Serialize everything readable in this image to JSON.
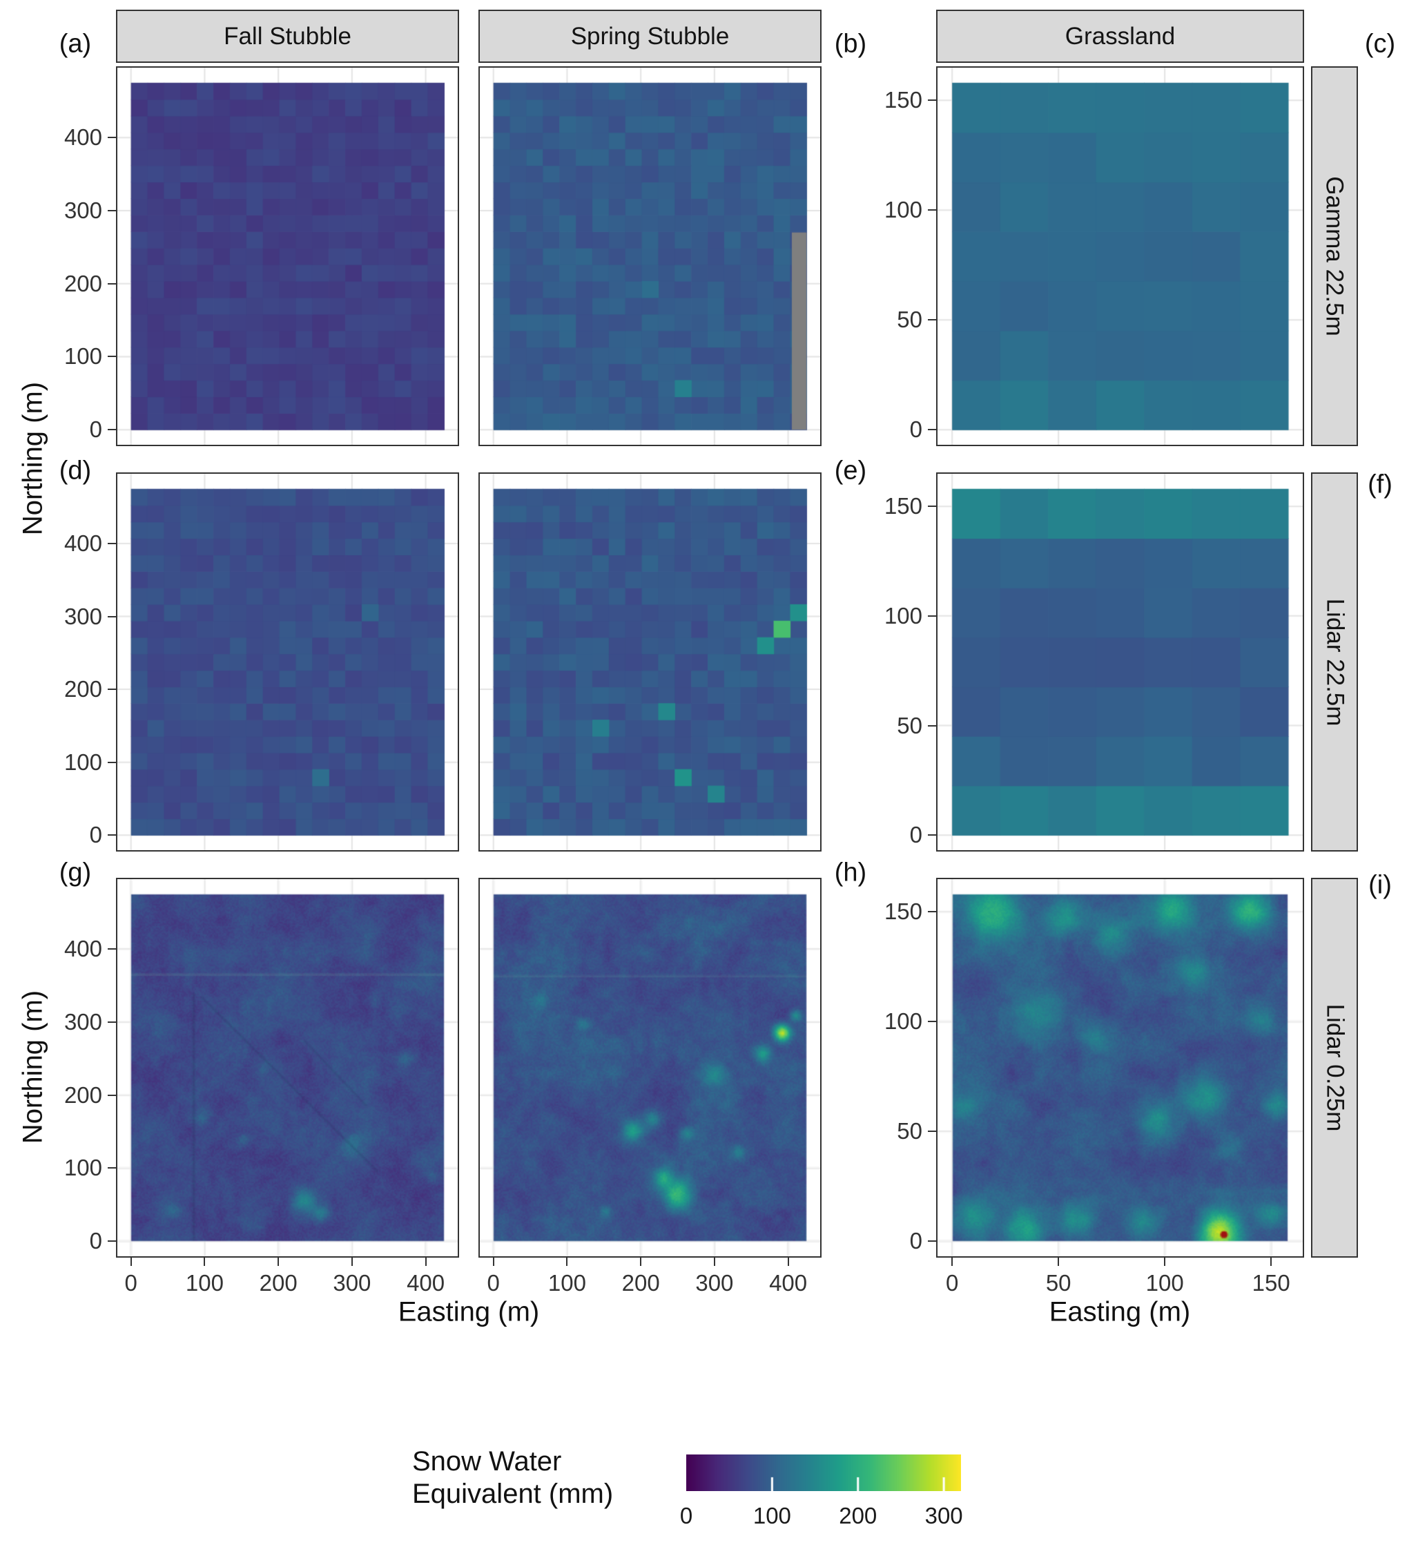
{
  "chart_data": {
    "type": "heatmap",
    "title": "",
    "xlabel": "Easting (m)",
    "ylabel": "Northing (m)",
    "facet_columns": [
      "Fall Stubble",
      "Spring Stubble",
      "Grassland"
    ],
    "facet_rows": [
      "Gamma 22.5m",
      "Lidar 22.5m",
      "Lidar 0.25m"
    ],
    "axes": {
      "stubble": {
        "x_ticks": [
          0,
          100,
          200,
          300,
          400
        ],
        "y_ticks": [
          0,
          100,
          200,
          300,
          400
        ],
        "x_range": [
          0,
          425
        ],
        "y_range": [
          0,
          475
        ]
      },
      "grassland": {
        "x_ticks": [
          0,
          50,
          100,
          150
        ],
        "y_ticks": [
          0,
          50,
          100,
          150
        ],
        "x_range": [
          0,
          158
        ],
        "y_range": [
          0,
          158
        ]
      }
    },
    "legend": {
      "title_lines": [
        "Snow Water",
        "Equivalent (mm)"
      ],
      "ticks": [
        0,
        100,
        200,
        300
      ],
      "vmin": 0,
      "vmax": 320
    },
    "colors": {
      "viridis": [
        "#440154",
        "#482878",
        "#3e4989",
        "#31688e",
        "#26828e",
        "#1f9e89",
        "#35b779",
        "#6ece58",
        "#b5de2b",
        "#fde725"
      ],
      "na": "#7f7f7f",
      "strip_fill": "#d9d9d9",
      "panel_border": "#333333",
      "text": "#111111",
      "axis_text": "#333333"
    },
    "panels": [
      {
        "id": "a",
        "label": "(a)",
        "facet_column": "Fall Stubble",
        "facet_row": "Gamma 22.5m",
        "axis": "stubble",
        "render": {
          "kind": "coarse",
          "cell_m": 22.5,
          "mean": 62,
          "spread": 11,
          "seed": 101,
          "row_means": null,
          "overrides": [],
          "na_rect": null
        }
      },
      {
        "id": "b",
        "label": "(b)",
        "facet_column": "Spring Stubble",
        "facet_row": "Gamma 22.5m",
        "axis": "stubble",
        "render": {
          "kind": "coarse",
          "cell_m": 22.5,
          "mean": 92,
          "spread": 13,
          "seed": 102,
          "row_means": null,
          "overrides": [
            [
              248,
              56,
              140
            ],
            [
              214,
              192,
              115
            ]
          ],
          "na_rect": [
            405,
            425,
            0,
            270
          ]
        }
      },
      {
        "id": "c",
        "label": "(c)",
        "facet_column": "Grassland",
        "facet_row": "Gamma 22.5m",
        "axis": "grassland",
        "render": {
          "kind": "coarse",
          "cell_m": 22.5,
          "mean": 114,
          "spread": 7,
          "seed": 103,
          "row_means": [
            124,
            113,
            109,
            109,
            112,
            116,
            127
          ],
          "overrides": [],
          "na_rect": null
        }
      },
      {
        "id": "d",
        "label": "(d)",
        "facet_column": "Fall Stubble",
        "facet_row": "Lidar 22.5m",
        "axis": "stubble",
        "render": {
          "kind": "coarse",
          "cell_m": 22.5,
          "mean": 78,
          "spread": 12,
          "seed": 104,
          "row_means": null,
          "overrides": [
            [
              260,
              80,
              115
            ],
            [
              320,
              300,
              104
            ]
          ],
          "na_rect": null
        }
      },
      {
        "id": "e",
        "label": "(e)",
        "facet_column": "Spring Stubble",
        "facet_row": "Lidar 22.5m",
        "axis": "stubble",
        "render": {
          "kind": "coarse",
          "cell_m": 22.5,
          "mean": 88,
          "spread": 15,
          "seed": 105,
          "row_means": null,
          "overrides": [
            [
              394,
              284,
              225
            ],
            [
              371,
              262,
              160
            ],
            [
              238,
              168,
              150
            ],
            [
              260,
              76,
              165
            ],
            [
              300,
              60,
              145
            ],
            [
              148,
              148,
              138
            ],
            [
              416,
              304,
              160
            ]
          ],
          "na_rect": null
        }
      },
      {
        "id": "f",
        "label": "(f)",
        "facet_column": "Grassland",
        "facet_row": "Lidar 22.5m",
        "axis": "grassland",
        "render": {
          "kind": "coarse",
          "cell_m": 22.5,
          "mean": 96,
          "spread": 8,
          "seed": 106,
          "row_means": [
            137,
            104,
            94,
            90,
            94,
            103,
            140
          ],
          "overrides": [],
          "na_rect": null
        }
      },
      {
        "id": "g",
        "label": "(g)",
        "facet_column": "Fall Stubble",
        "facet_row": "Lidar 0.25m",
        "axis": "stubble",
        "render": {
          "kind": "fine",
          "mean": 72,
          "octaves": [
            [
              40,
              16
            ],
            [
              11,
              10
            ]
          ],
          "speckle": 9,
          "seed": 107,
          "blobs": [
            [
              235,
              55,
              13,
              75
            ],
            [
              258,
              38,
              8,
              55
            ],
            [
              300,
              132,
              10,
              40
            ],
            [
              95,
              172,
              8,
              32
            ],
            [
              152,
              140,
              6,
              30
            ],
            [
              372,
              250,
              8,
              30
            ],
            [
              58,
              42,
              9,
              32
            ],
            [
              408,
              88,
              6,
              28
            ],
            [
              330,
              330,
              7,
              22
            ],
            [
              180,
              240,
              6,
              22
            ]
          ],
          "lines": [
            [
              0,
              365,
              425,
              365,
              0.12,
              0
            ],
            [
              85,
              0,
              85,
              340,
              0.14,
              1
            ],
            [
              95,
              335,
              335,
              95,
              0.12,
              1
            ],
            [
              235,
              275,
              320,
              185,
              0.1,
              1
            ]
          ],
          "marker": null
        }
      },
      {
        "id": "h",
        "label": "(h)",
        "facet_column": "Spring Stubble",
        "facet_row": "Lidar 0.25m",
        "axis": "stubble",
        "render": {
          "kind": "fine",
          "mean": 82,
          "octaves": [
            [
              40,
              18
            ],
            [
              11,
              11
            ]
          ],
          "speckle": 9,
          "seed": 108,
          "blobs": [
            [
              250,
              65,
              14,
              130
            ],
            [
              228,
              88,
              9,
              85
            ],
            [
              188,
              152,
              10,
              95
            ],
            [
              215,
              168,
              8,
              75
            ],
            [
              391,
              286,
              8,
              210
            ],
            [
              365,
              258,
              8,
              95
            ],
            [
              300,
              230,
              10,
              60
            ],
            [
              120,
              300,
              7,
              40
            ],
            [
              62,
              330,
              7,
              36
            ],
            [
              332,
              122,
              7,
              50
            ],
            [
              150,
              42,
              6,
              40
            ],
            [
              262,
              148,
              7,
              60
            ],
            [
              410,
              310,
              6,
              80
            ]
          ],
          "lines": [
            [
              0,
              363,
              425,
              363,
              0.1,
              0
            ]
          ],
          "marker": null
        }
      },
      {
        "id": "i",
        "label": "(i)",
        "facet_column": "Grassland",
        "facet_row": "Lidar 0.25m",
        "axis": "grassland",
        "render": {
          "kind": "fine",
          "mean": 88,
          "octaves": [
            [
              14,
              18
            ],
            [
              4.5,
              11
            ]
          ],
          "speckle": 9,
          "seed": 109,
          "blobs": [
            [
              18,
              150,
              9,
              110
            ],
            [
              52,
              148,
              7,
              85
            ],
            [
              103,
              152,
              8,
              100
            ],
            [
              140,
              151,
              7,
              120
            ],
            [
              75,
              140,
              6,
              55
            ],
            [
              113,
              124,
              7,
              65
            ],
            [
              40,
              104,
              8,
              65
            ],
            [
              66,
              94,
              6,
              55
            ],
            [
              120,
              66,
              7,
              75
            ],
            [
              96,
              55,
              6,
              55
            ],
            [
              130,
              42,
              5,
              45
            ],
            [
              10,
              10,
              7,
              85
            ],
            [
              34,
              6,
              7,
              100
            ],
            [
              58,
              10,
              6,
              75
            ],
            [
              88,
              8,
              5,
              65
            ],
            [
              126,
              4,
              7,
              200
            ],
            [
              150,
              12,
              5,
              75
            ],
            [
              152,
              62,
              5,
              55
            ],
            [
              5,
              62,
              5,
              45
            ],
            [
              145,
              100,
              5,
              50
            ]
          ],
          "lines": [],
          "marker": [
            128,
            3,
            "#a11212"
          ]
        }
      }
    ]
  }
}
